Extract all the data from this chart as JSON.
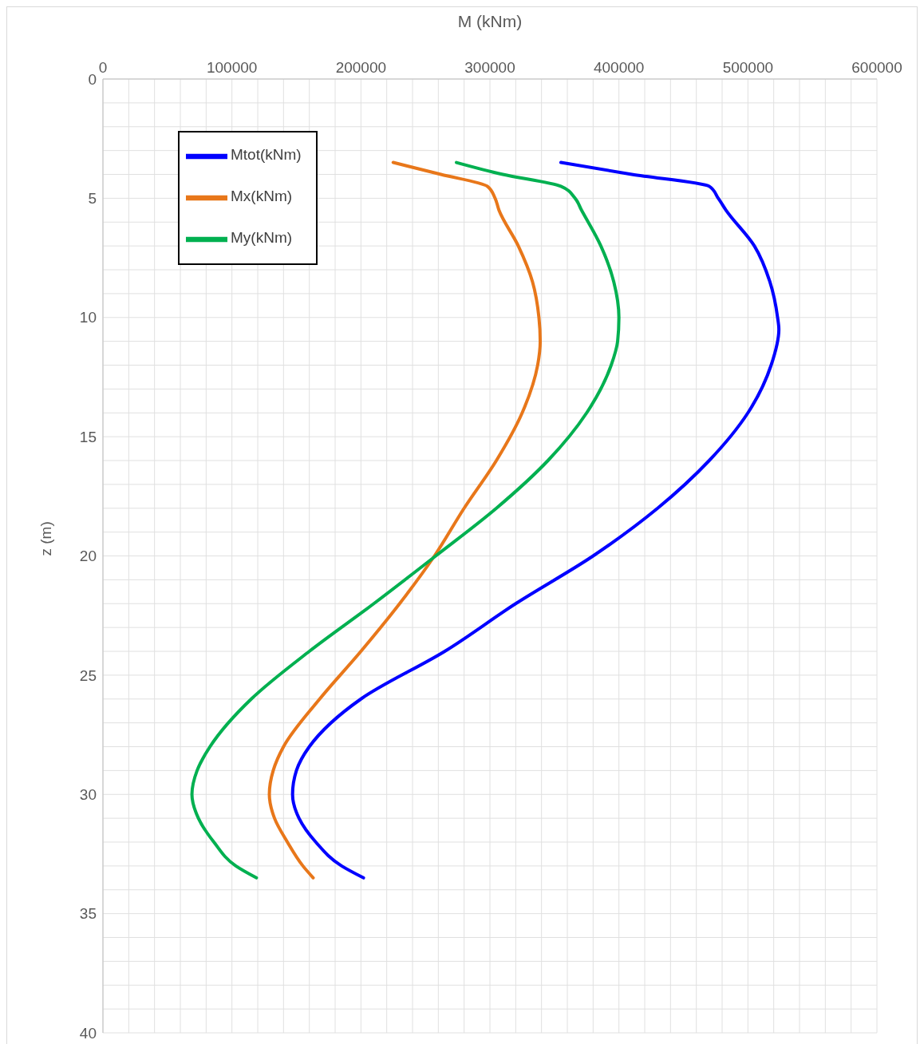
{
  "chart_data": {
    "type": "line",
    "xlabel": "M (kNm)",
    "ylabel": "z (m)",
    "xlim": [
      0,
      600000
    ],
    "xticks": [
      0,
      {
        "value": 20000,
        "label": null
      },
      {
        "value": 40000,
        "label": null
      },
      {
        "value": 60000,
        "label": null
      },
      {
        "value": 80000,
        "label": null
      },
      100000,
      {
        "value": 120000,
        "label": null
      },
      {
        "value": 140000,
        "label": null
      },
      {
        "value": 160000,
        "label": null
      },
      {
        "value": 180000,
        "label": null
      },
      200000,
      {
        "value": 220000,
        "label": null
      },
      {
        "value": 240000,
        "label": null
      },
      {
        "value": 260000,
        "label": null
      },
      {
        "value": 280000,
        "label": null
      },
      300000,
      {
        "value": 320000,
        "label": null
      },
      {
        "value": 340000,
        "label": null
      },
      {
        "value": 360000,
        "label": null
      },
      {
        "value": 380000,
        "label": null
      },
      400000,
      {
        "value": 420000,
        "label": null
      },
      {
        "value": 440000,
        "label": null
      },
      {
        "value": 460000,
        "label": null
      },
      {
        "value": 480000,
        "label": null
      },
      500000,
      {
        "value": 520000,
        "label": null
      },
      {
        "value": 540000,
        "label": null
      },
      {
        "value": 560000,
        "label": null
      },
      {
        "value": 580000,
        "label": null
      },
      600000
    ],
    "ylim": [
      40,
      0
    ],
    "yticks": [
      0,
      {
        "value": 1,
        "label": null
      },
      {
        "value": 2,
        "label": null
      },
      {
        "value": 3,
        "label": null
      },
      {
        "value": 4,
        "label": null
      },
      5,
      {
        "value": 6,
        "label": null
      },
      {
        "value": 7,
        "label": null
      },
      {
        "value": 8,
        "label": null
      },
      {
        "value": 9,
        "label": null
      },
      10,
      {
        "value": 11,
        "label": null
      },
      {
        "value": 12,
        "label": null
      },
      {
        "value": 13,
        "label": null
      },
      {
        "value": 14,
        "label": null
      },
      15,
      {
        "value": 16,
        "label": null
      },
      {
        "value": 17,
        "label": null
      },
      {
        "value": 18,
        "label": null
      },
      {
        "value": 19,
        "label": null
      },
      20,
      {
        "value": 21,
        "label": null
      },
      {
        "value": 22,
        "label": null
      },
      {
        "value": 23,
        "label": null
      },
      {
        "value": 24,
        "label": null
      },
      25,
      {
        "value": 26,
        "label": null
      },
      {
        "value": 27,
        "label": null
      },
      {
        "value": 28,
        "label": null
      },
      {
        "value": 29,
        "label": null
      },
      30,
      {
        "value": 31,
        "label": null
      },
      {
        "value": 32,
        "label": null
      },
      {
        "value": 33,
        "label": null
      },
      {
        "value": 34,
        "label": null
      },
      35,
      {
        "value": 36,
        "label": null
      },
      {
        "value": 37,
        "label": null
      },
      {
        "value": 38,
        "label": null
      },
      {
        "value": 39,
        "label": null
      },
      40
    ],
    "grid": true,
    "legend": "top left",
    "marker": "none",
    "line_style": "solid",
    "series": [
      {
        "name": "Mtot(kNm)",
        "color": "#0000ff",
        "x": [
          355000,
          410000,
          470000,
          477000,
          483000,
          505000,
          517000,
          523000,
          524000,
          518000,
          500000,
          470000,
          430000,
          380000,
          320000,
          265000,
          200000,
          160000,
          150000,
          147000,
          152000,
          165000,
          185000,
          202000
        ],
        "values": [
          3.5,
          4,
          4.5,
          5,
          5.5,
          7,
          8.5,
          10,
          10.5,
          12,
          14,
          16,
          18,
          20,
          22,
          24,
          26,
          28,
          29,
          30,
          31,
          32,
          33,
          33.5
        ]
      },
      {
        "name": "Mx(kNm)",
        "color": "#e8771a",
        "x": [
          225000,
          262000,
          298000,
          304000,
          307000,
          322000,
          333000,
          338000,
          339000,
          337000,
          325000,
          305000,
          280000,
          257000,
          230000,
          200000,
          168000,
          140000,
          132000,
          129000,
          133000,
          143000,
          155000,
          163000
        ],
        "values": [
          3.5,
          4,
          4.5,
          5,
          5.5,
          7,
          8.5,
          10,
          11,
          12,
          14,
          16,
          18,
          20,
          22,
          24,
          26,
          28,
          29,
          30,
          31,
          32,
          33,
          33.5
        ]
      },
      {
        "name": "My(kNm)",
        "color": "#00b050",
        "x": [
          274000,
          310000,
          355000,
          366000,
          371000,
          386000,
          396000,
          400000,
          399000,
          394000,
          375000,
          345000,
          305000,
          258000,
          210000,
          160000,
          115000,
          83000,
          73000,
          69000,
          74000,
          86000,
          103000,
          119000
        ],
        "values": [
          3.5,
          4,
          4.5,
          5,
          5.5,
          7,
          8.5,
          10,
          11,
          12,
          14,
          16,
          18,
          20,
          22,
          24,
          26,
          28,
          29,
          30,
          31,
          32,
          33,
          33.5
        ]
      }
    ]
  }
}
